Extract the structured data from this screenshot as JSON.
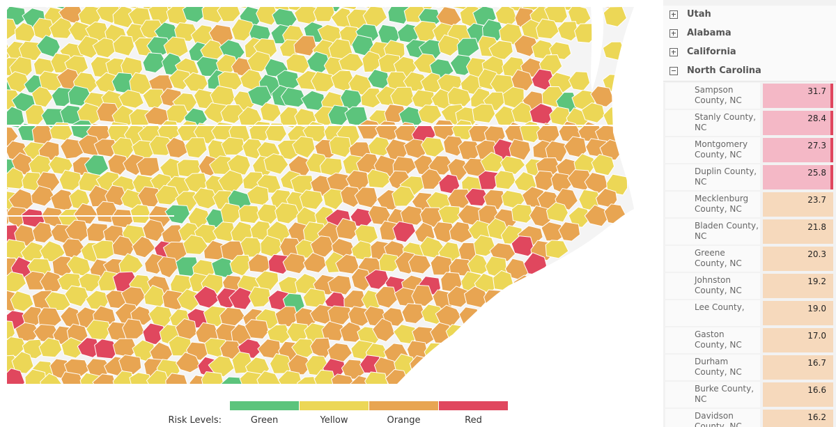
{
  "map": {
    "colors": {
      "green": "#5cc47c",
      "yellow": "#ecd756",
      "orange": "#e8a552",
      "red": "#e0475e",
      "water": "#ffffff"
    },
    "region_name": "county-risk-map"
  },
  "legend": {
    "title": "Risk Levels:",
    "items": [
      {
        "label": "Green",
        "color": "#5cc47c"
      },
      {
        "label": "Yellow",
        "color": "#ecd756"
      },
      {
        "label": "Orange",
        "color": "#e8a552"
      },
      {
        "label": "Red",
        "color": "#e0475e"
      }
    ]
  },
  "panel": {
    "states": [
      {
        "name": "Utah",
        "expanded": false
      },
      {
        "name": "Alabama",
        "expanded": false
      },
      {
        "name": "California",
        "expanded": false
      },
      {
        "name": "North Carolina",
        "expanded": true
      }
    ],
    "counties": [
      {
        "name": "Sampson County, NC",
        "value": "31.7",
        "level": "red"
      },
      {
        "name": "Stanly County, NC",
        "value": "28.4",
        "level": "red"
      },
      {
        "name": "Montgomery County, NC",
        "value": "27.3",
        "level": "red"
      },
      {
        "name": "Duplin County, NC",
        "value": "25.8",
        "level": "red"
      },
      {
        "name": "Mecklenburg County, NC",
        "value": "23.7",
        "level": "orange"
      },
      {
        "name": "Bladen County, NC",
        "value": "21.8",
        "level": "orange"
      },
      {
        "name": "Greene County, NC",
        "value": "20.3",
        "level": "orange"
      },
      {
        "name": "Johnston County, NC",
        "value": "19.2",
        "level": "orange"
      },
      {
        "name": "Lee County,",
        "value": "19.0",
        "level": "orange"
      },
      {
        "name": "Gaston County, NC",
        "value": "17.0",
        "level": "orange"
      },
      {
        "name": "Durham County, NC",
        "value": "16.7",
        "level": "orange"
      },
      {
        "name": "Burke County, NC",
        "value": "16.6",
        "level": "orange"
      },
      {
        "name": "Davidson County, NC",
        "value": "16.2",
        "level": "orange"
      }
    ],
    "level_colors": {
      "red": "#f4b8c6",
      "orange": "#f6d9bc"
    },
    "level_bars": {
      "red": "#e0475e",
      "orange": "#f6d9bc"
    }
  }
}
